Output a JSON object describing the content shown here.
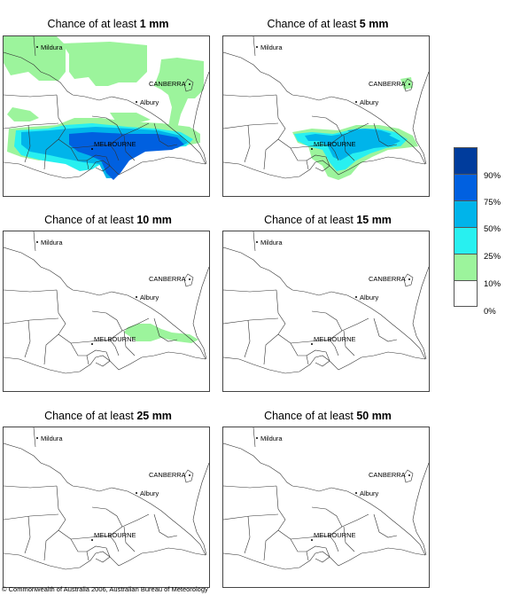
{
  "panels": [
    {
      "prefix": "Chance of at least ",
      "amount": "1 mm"
    },
    {
      "prefix": "Chance of at least ",
      "amount": "5 mm"
    },
    {
      "prefix": "Chance of at least ",
      "amount": "10 mm"
    },
    {
      "prefix": "Chance of at least ",
      "amount": "15 mm"
    },
    {
      "prefix": "Chance of at least ",
      "amount": "25 mm"
    },
    {
      "prefix": "Chance of at least ",
      "amount": "50 mm"
    }
  ],
  "places": {
    "mildura": "Mildura",
    "canberra": "CANBERRA",
    "albury": "Albury",
    "melbourne": "MELBOURNE"
  },
  "legend": {
    "labels": [
      "90%",
      "75%",
      "50%",
      "25%",
      "10%",
      "0%"
    ],
    "colors": [
      "#003c9c",
      "#0060e0",
      "#00b4ea",
      "#28f0f0",
      "#9cf49c",
      "#ffffff"
    ]
  },
  "copyright": "© Commonwealth of Australia 2006, Australian Bureau of Meteorology"
}
